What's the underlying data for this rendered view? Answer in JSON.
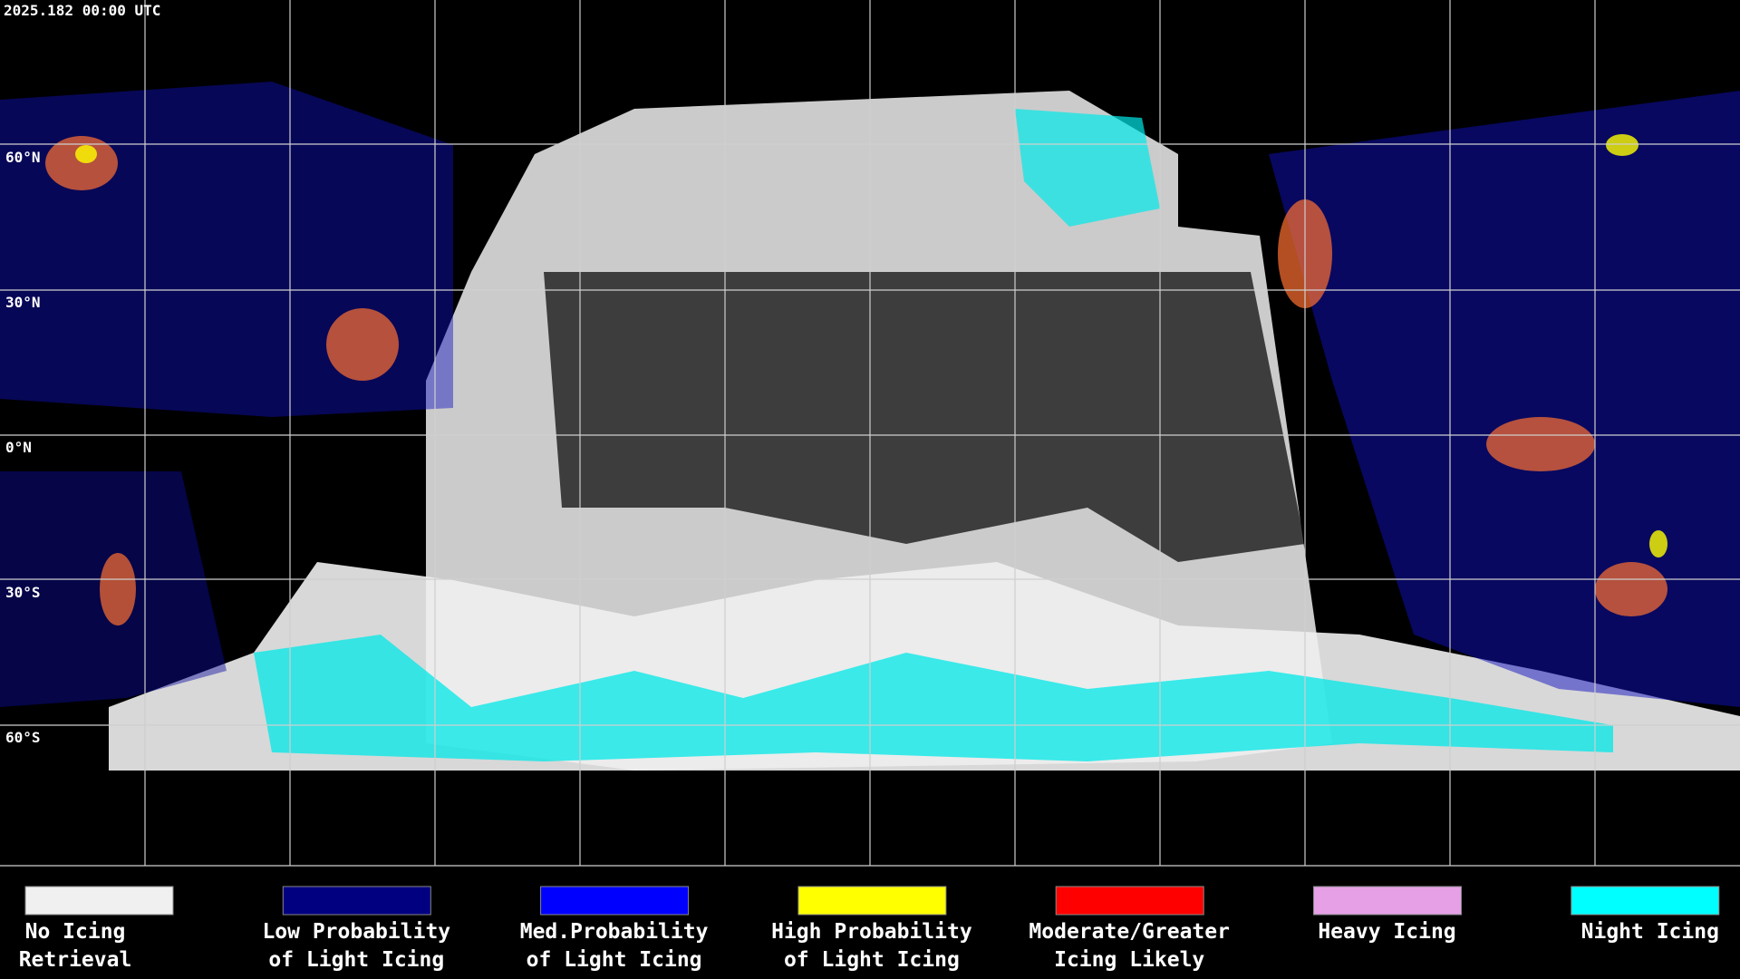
{
  "header": {
    "timestamp": "2025.182 00:00 UTC"
  },
  "map": {
    "latitude_labels": [
      "60°N",
      "30°N",
      "0°N",
      "30°S",
      "60°S"
    ]
  },
  "legend": [
    {
      "label": [
        "No Icing",
        "Retrieval"
      ],
      "color": "#f0f0f0"
    },
    {
      "label": [
        "Low Probability",
        "of Light Icing"
      ],
      "color": "#000080"
    },
    {
      "label": [
        "Med.Probability",
        "of Light Icing"
      ],
      "color": "#0000ff"
    },
    {
      "label": [
        "High Probability",
        "of Light Icing"
      ],
      "color": "#ffff00"
    },
    {
      "label": [
        "Moderate/Greater",
        "Icing Likely"
      ],
      "color": "#ff0000"
    },
    {
      "label": [
        "Heavy Icing"
      ],
      "color": "#e6a0e6"
    },
    {
      "label": [
        "Night Icing"
      ],
      "color": "#00ffff"
    }
  ]
}
